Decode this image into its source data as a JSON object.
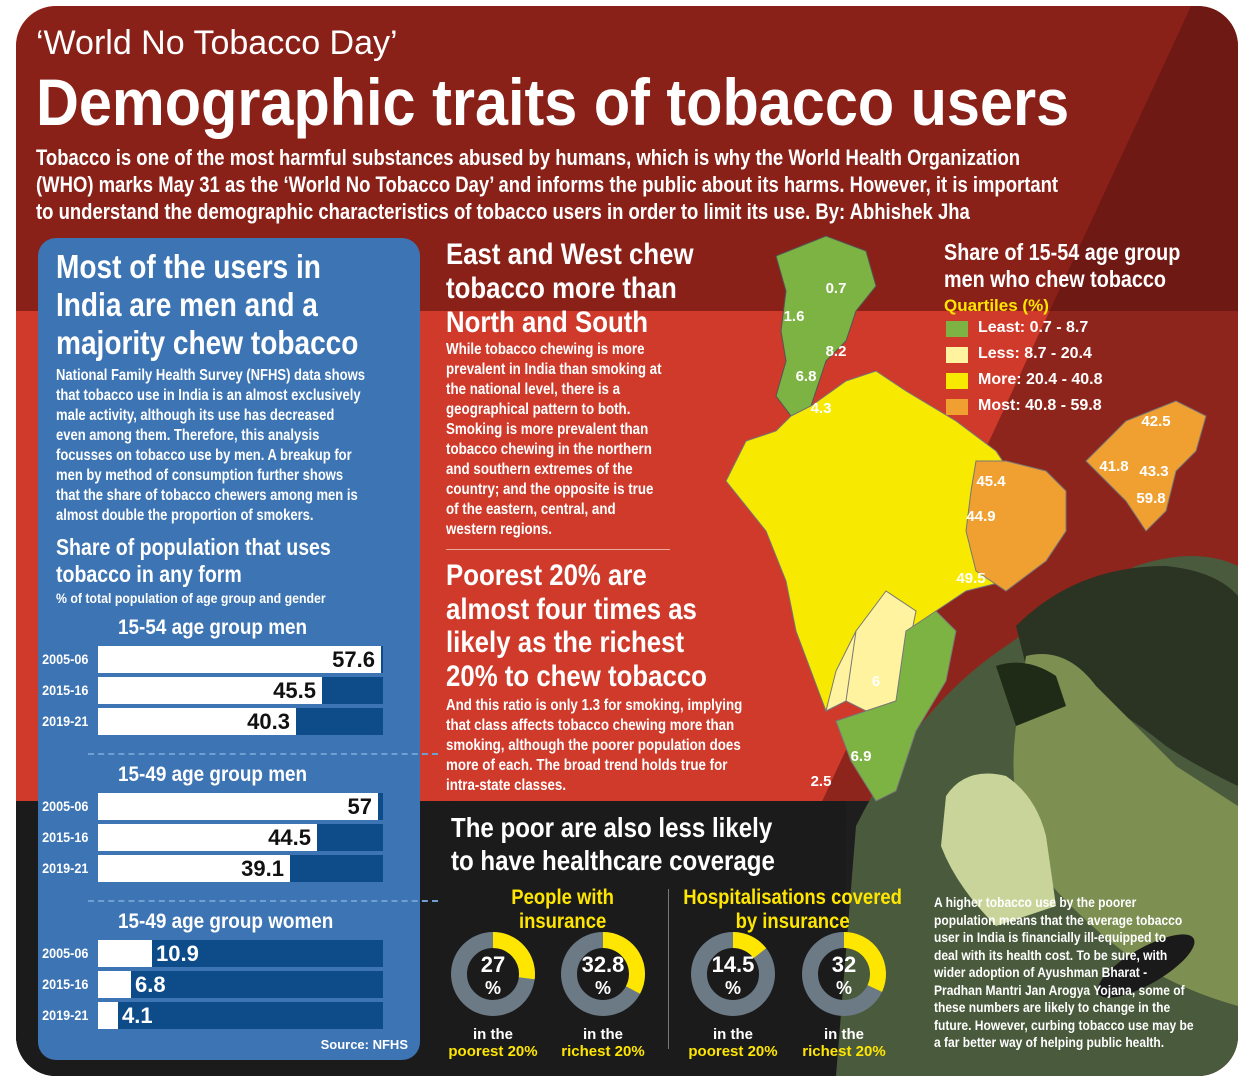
{
  "header": {
    "kicker": "‘World No Tobacco Day’",
    "title": "Demographic traits of tobacco users",
    "intro_1": "Tobacco is one of the most harmful substances abused by humans, which is why the World Health Organization",
    "intro_2": "(WHO) marks May 31 as the ‘World No Tobacco Day’ and informs the public about its harms. However, it is important",
    "intro_3": "to understand the demographic characteristics of tobacco users in order to limit its use.  By: Abhishek Jha"
  },
  "left": {
    "heading_1": "Most of the users in",
    "heading_2": "India are men and a",
    "heading_3": "majority chew tobacco",
    "body": [
      "National Family Health Survey (NFHS) data shows",
      "that tobacco use in India is an almost exclusively",
      "male activity, although its use has decreased",
      "even among them. Therefore, this analysis",
      "focusses on tobacco use by men. A breakup for",
      "men by method of consumption further shows",
      "that the share of tobacco chewers among men is",
      "almost double the proportion of smokers."
    ],
    "chart_title_1": "Share of population that uses",
    "chart_title_2": "tobacco in any form",
    "chart_subtitle": "% of total population of age group and gender",
    "source": "Source: NFHS"
  },
  "middle": {
    "heading1": [
      "East and West chew",
      "tobacco more than",
      "North and South"
    ],
    "body1": [
      "While tobacco chewing is more",
      "prevalent in India than smoking at",
      "the national level, there is a",
      "geographical pattern to both.",
      "Smoking is more prevalent than",
      "tobacco chewing in the northern",
      "and southern extremes of the",
      "country; and the opposite is true",
      "of the eastern, central, and",
      "western regions."
    ],
    "heading2": [
      "Poorest 20% are",
      "almost four times as",
      "likely as the richest",
      "20% to chew tobacco"
    ],
    "body2": [
      "And this ratio is only 1.3 for smoking, implying",
      "that class affects tobacco chewing more than",
      "smoking, although the poorer population does",
      "more of each. The broad trend holds true for",
      "intra-state classes."
    ]
  },
  "map": {
    "title_1": "Share of 15-54 age group",
    "title_2": "men who chew tobacco",
    "subtitle": "Quartiles (%)",
    "legend": [
      {
        "label": "Least: 0.7 - 8.7",
        "color": "#7cb342"
      },
      {
        "label": "Less: 8.7 - 20.4",
        "color": "#fff3a0"
      },
      {
        "label": "More: 20.4 - 40.8",
        "color": "#f7ea00"
      },
      {
        "label": "Most: 40.8 - 59.8",
        "color": "#f0a030"
      }
    ],
    "values": [
      "0.7",
      "1.6",
      "8.2",
      "6.8",
      "4.3",
      "42.5",
      "41.8",
      "43.3",
      "59.8",
      "45.4",
      "44.9",
      "49.5",
      "6",
      "6.9",
      "2.5"
    ]
  },
  "bottom": {
    "heading_1": "The poor are also less likely",
    "heading_2": "to have healthcare coverage",
    "group1_1": "People with",
    "group1_2": "insurance",
    "group2_1": "Hospitalisations covered",
    "group2_2": "by insurance",
    "in_the": "in the",
    "poorest": "poorest 20%",
    "richest": "richest 20%",
    "pct": "%",
    "note": [
      "A higher tobacco use by the poorer",
      "population means that the average tobacco",
      "user in India is financially ill-equipped to",
      "deal with its health cost. To be sure, with",
      "wider adoption of Ayushman Bharat -",
      "Pradhan Mantri Jan Arogya Yojana, some of",
      "these numbers are likely to change in the",
      "future. However, curbing tobacco use may be",
      "a far better way of helping public health."
    ]
  },
  "chart_data": [
    {
      "type": "bar",
      "title": "Share of population that uses tobacco in any form",
      "subtitle": "% of total population of age group and gender",
      "categories": [
        "2005-06",
        "2015-16",
        "2019-21"
      ],
      "series": [
        {
          "name": "15-54 age group men",
          "values": [
            57.6,
            45.5,
            40.3
          ]
        },
        {
          "name": "15-49 age group men",
          "values": [
            57,
            44.5,
            39.1
          ]
        },
        {
          "name": "15-49 age group women",
          "values": [
            10.9,
            6.8,
            4.1
          ]
        }
      ],
      "xlim": [
        0,
        100
      ]
    },
    {
      "type": "pie",
      "title": "People with insurance",
      "categories": [
        "poorest 20%",
        "richest 20%"
      ],
      "values": [
        27,
        32.8
      ]
    },
    {
      "type": "pie",
      "title": "Hospitalisations covered by insurance",
      "categories": [
        "poorest 20%",
        "richest 20%"
      ],
      "values": [
        14.5,
        32
      ]
    }
  ]
}
